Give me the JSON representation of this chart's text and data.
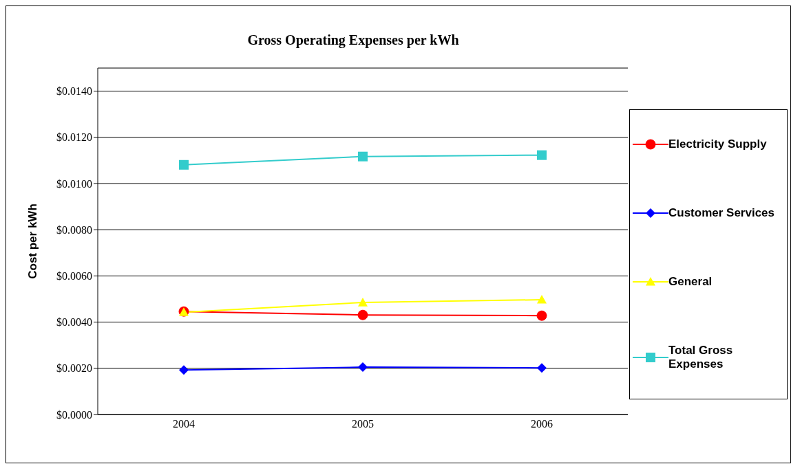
{
  "chart_data": {
    "type": "line",
    "title": "Gross Operating Expenses per kWh",
    "ylabel": "Cost per kWh",
    "categories": [
      "2004",
      "2005",
      "2006"
    ],
    "series": [
      {
        "name": "Electricity Supply",
        "color": "#ff0000",
        "marker": "circle",
        "values": [
          0.00446,
          0.00431,
          0.00428
        ]
      },
      {
        "name": "Customer Services",
        "color": "#0000ff",
        "marker": "diamond",
        "values": [
          0.00193,
          0.00205,
          0.00202
        ]
      },
      {
        "name": "General",
        "color": "#ffff00",
        "marker": "triangle",
        "values": [
          0.00443,
          0.00485,
          0.00497
        ]
      },
      {
        "name": "Total Gross Expenses",
        "color": "#33cccc",
        "marker": "square",
        "values": [
          0.01081,
          0.01117,
          0.01123
        ]
      }
    ],
    "ylim": [
      0,
      0.015
    ],
    "yticks": [
      {
        "value": 0,
        "label": "$0.0000"
      },
      {
        "value": 0.002,
        "label": "$0.0020"
      },
      {
        "value": 0.004,
        "label": "$0.0040"
      },
      {
        "value": 0.006,
        "label": "$0.0060"
      },
      {
        "value": 0.008,
        "label": "$0.0080"
      },
      {
        "value": 0.01,
        "label": "$0.0100"
      },
      {
        "value": 0.012,
        "label": "$0.0120"
      },
      {
        "value": 0.014,
        "label": "$0.0140"
      }
    ],
    "grid": "y",
    "legend": "right",
    "line_style": "solid"
  }
}
